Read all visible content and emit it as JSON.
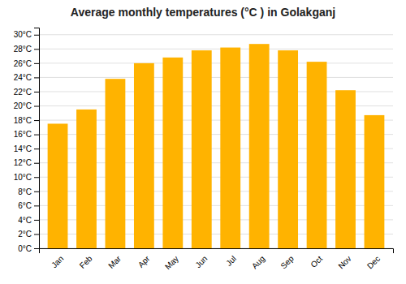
{
  "chart_data": {
    "type": "bar",
    "title": "Average monthly temperatures (°C ) in Golakganj",
    "categories": [
      "Jan",
      "Feb",
      "Mar",
      "Apr",
      "May",
      "Jun",
      "Jul",
      "Aug",
      "Sep",
      "Oct",
      "Nov",
      "Dec"
    ],
    "values": [
      17.5,
      19.5,
      23.8,
      26.0,
      26.8,
      27.8,
      28.2,
      28.7,
      27.8,
      26.2,
      22.2,
      18.7
    ],
    "color": "#FFB300",
    "ylim": [
      0,
      31
    ],
    "yticks": [
      {
        "value": 0,
        "label": "0°C"
      },
      {
        "value": 2,
        "label": "2°C"
      },
      {
        "value": 4,
        "label": "4°C"
      },
      {
        "value": 6,
        "label": "6°C"
      },
      {
        "value": 8,
        "label": "8°C"
      },
      {
        "value": 10,
        "label": "10°C"
      },
      {
        "value": 12,
        "label": "12°C"
      },
      {
        "value": 14,
        "label": "14°C"
      },
      {
        "value": 16,
        "label": "16°C"
      },
      {
        "value": 18,
        "label": "18°C"
      },
      {
        "value": 20,
        "label": "20°C"
      },
      {
        "value": 22,
        "label": "22°C"
      },
      {
        "value": 24,
        "label": "24°C"
      },
      {
        "value": 26,
        "label": "26°C"
      },
      {
        "value": 28,
        "label": "28°C"
      },
      {
        "value": 30,
        "label": "30°C"
      }
    ],
    "grid": true
  }
}
